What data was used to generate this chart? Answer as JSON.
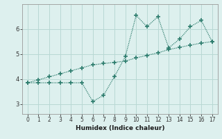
{
  "xlabel": "Humidex (Indice chaleur)",
  "x": [
    0,
    1,
    2,
    3,
    4,
    5,
    6,
    7,
    8,
    9,
    10,
    11,
    12,
    13,
    14,
    15,
    16,
    17
  ],
  "line1_y": [
    3.85,
    3.85,
    3.85,
    3.85,
    3.85,
    3.85,
    3.1,
    3.35,
    4.1,
    4.9,
    6.55,
    6.1,
    6.5,
    5.25,
    5.6,
    6.1,
    6.35,
    5.5
  ],
  "line2_y": [
    3.85,
    3.97,
    4.09,
    4.21,
    4.33,
    4.45,
    4.57,
    4.62,
    4.67,
    4.72,
    4.85,
    4.95,
    5.05,
    5.18,
    5.27,
    5.36,
    5.44,
    5.5
  ],
  "line_color": "#2e7d6e",
  "background_color": "#ddf0ee",
  "grid_color": "#b8d8d4",
  "ylim": [
    2.6,
    7.0
  ],
  "yticks": [
    3,
    4,
    5,
    6
  ],
  "xlim": [
    -0.5,
    17.5
  ],
  "xticks": [
    0,
    1,
    2,
    3,
    4,
    5,
    6,
    7,
    8,
    9,
    10,
    11,
    12,
    13,
    14,
    15,
    16,
    17
  ],
  "marker": "+",
  "markersize": 4,
  "linewidth": 0.9,
  "tick_fontsize": 5.5,
  "xlabel_fontsize": 6.5
}
